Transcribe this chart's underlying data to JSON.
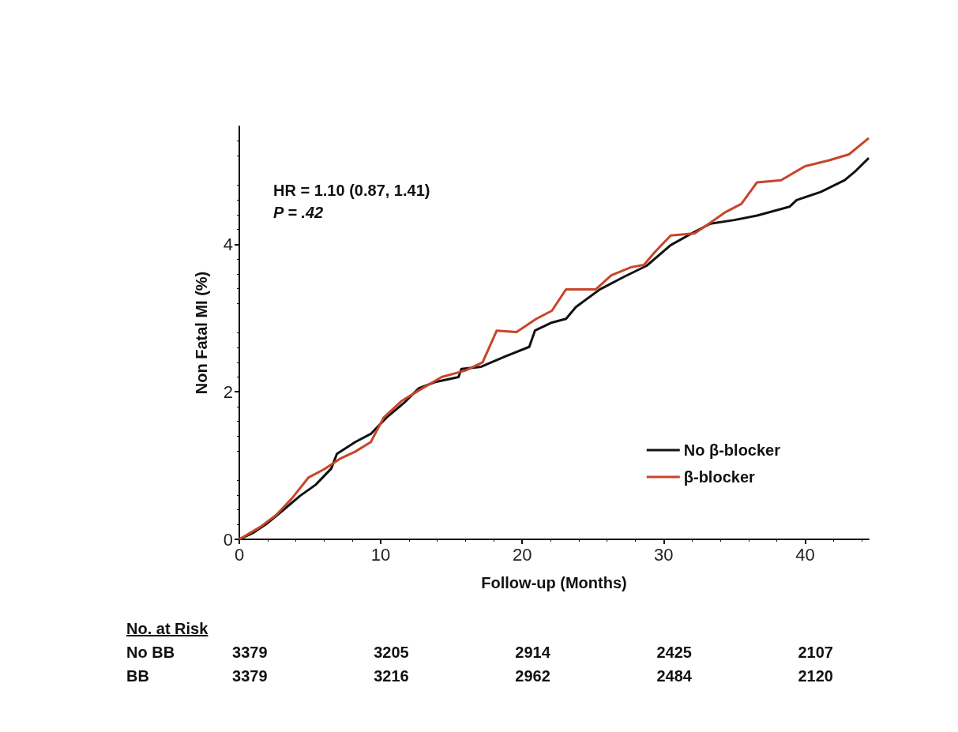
{
  "chart_data": {
    "type": "line",
    "xlabel": "Follow-up (Months)",
    "ylabel": "Non Fatal MI (%)",
    "xlim": [
      0,
      44.5
    ],
    "xticks": [
      0,
      10,
      20,
      30,
      40
    ],
    "ylim": [
      0,
      5.6
    ],
    "yticks": [
      0,
      2,
      4
    ],
    "grid": false,
    "legend": "center right",
    "marker": "none",
    "line_style": "solid",
    "annotations": [
      "HR = 1.10 (0.87, 1.41)",
      "P = .42",
      "No. at Risk",
      "No BB 3379 3205 2914 2425 2107",
      "BB 3379 3216 2962 2484 2120"
    ],
    "series": [
      {
        "name": "No β-blocker",
        "color": "#111111",
        "x": [
          0,
          1,
          2,
          3,
          4.3,
          5.4,
          6.5,
          6.9,
          8.2,
          9.3,
          10.4,
          11.7,
          12.7,
          13.8,
          15.5,
          15.7,
          17.1,
          18.8,
          20.5,
          20.9,
          22.1,
          23.1,
          23.8,
          25.5,
          27.2,
          28.8,
          30.5,
          32.2,
          33.3,
          35,
          36.6,
          38.9,
          39.4,
          41.1,
          42.8,
          43.6,
          44.5
        ],
        "values": [
          0,
          0.09,
          0.22,
          0.38,
          0.59,
          0.74,
          0.96,
          1.16,
          1.32,
          1.43,
          1.65,
          1.86,
          2.05,
          2.13,
          2.2,
          2.31,
          2.34,
          2.48,
          2.61,
          2.83,
          2.94,
          2.99,
          3.15,
          3.39,
          3.56,
          3.71,
          3.99,
          4.17,
          4.28,
          4.33,
          4.39,
          4.51,
          4.6,
          4.71,
          4.87,
          5.0,
          5.17
        ]
      },
      {
        "name": "β-blocker",
        "color": "#c8452a",
        "x": [
          0,
          1.5,
          2.6,
          3.7,
          4.9,
          6,
          7.1,
          8.2,
          9.3,
          10.2,
          11.5,
          12.7,
          14.3,
          16,
          17.2,
          18.2,
          19.6,
          21,
          22.1,
          23.1,
          25.2,
          26.3,
          27.7,
          28.6,
          29.4,
          30.5,
          32.2,
          33.2,
          34.4,
          35.5,
          36.6,
          38.3,
          40,
          41.7,
          43.1,
          44.5
        ],
        "values": [
          0,
          0.17,
          0.33,
          0.55,
          0.84,
          0.95,
          1.09,
          1.19,
          1.32,
          1.65,
          1.88,
          2.02,
          2.2,
          2.29,
          2.4,
          2.83,
          2.81,
          2.99,
          3.1,
          3.39,
          3.39,
          3.58,
          3.69,
          3.72,
          3.9,
          4.12,
          4.15,
          4.28,
          4.44,
          4.55,
          4.84,
          4.87,
          5.06,
          5.14,
          5.22,
          5.44
        ]
      }
    ]
  }
}
